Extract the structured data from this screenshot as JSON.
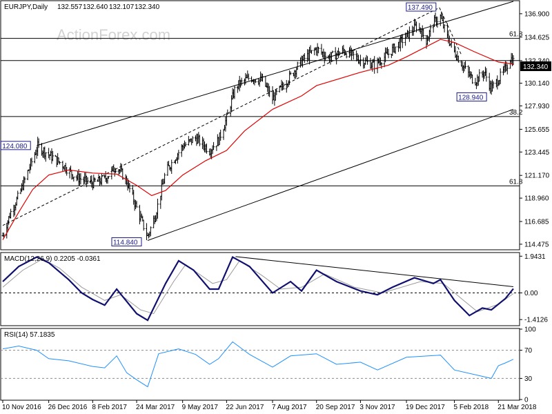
{
  "chart_data": [
    {
      "type": "candlestick",
      "title": "EURJPY,Daily",
      "ohlc_header": [
        "132.557",
        "132.640",
        "132.107",
        "132.340"
      ],
      "watermark": "ActionForex.com",
      "ylim": [
        114.0,
        138.1
      ],
      "y_ticks": [
        "136.900",
        "134.625",
        "132.340",
        "130.140",
        "127.930",
        "125.655",
        "123.445",
        "121.170",
        "118.960",
        "116.685",
        "114.475"
      ],
      "last_price": "132.340",
      "x_ticks": [
        "10 Nov 2016",
        "26 Dec 2016",
        "8 Feb 2017",
        "24 Mar 2017",
        "9 May 2017",
        "22 Jun 2017",
        "7 Aug 2017",
        "20 Sep 2017",
        "3 Nov 2017",
        "19 Dec 2017",
        "5 Feb 2018",
        "21 Mar 2018"
      ],
      "price_path": [
        {
          "x": "10 Nov 2016",
          "y": 115.3
        },
        {
          "x": "18 Nov 2016",
          "y": 117.6
        },
        {
          "x": "26 Nov 2016",
          "y": 119.2
        },
        {
          "x": "5 Dec 2016",
          "y": 121.5
        },
        {
          "x": "15 Dec 2016",
          "y": 124.0
        },
        {
          "x": "26 Dec 2016",
          "y": 123.2
        },
        {
          "x": "8 Jan 2017",
          "y": 122.3
        },
        {
          "x": "22 Jan 2017",
          "y": 121.0
        },
        {
          "x": "8 Feb 2017",
          "y": 120.4
        },
        {
          "x": "20 Feb 2017",
          "y": 120.8
        },
        {
          "x": "4 Mar 2017",
          "y": 122.1
        },
        {
          "x": "14 Mar 2017",
          "y": 120.6
        },
        {
          "x": "24 Mar 2017",
          "y": 118.0
        },
        {
          "x": "4 Apr 2017",
          "y": 115.2
        },
        {
          "x": "12 Apr 2017",
          "y": 117.4
        },
        {
          "x": "22 Apr 2017",
          "y": 121.5
        },
        {
          "x": "9 May 2017",
          "y": 124.0
        },
        {
          "x": "22 May 2017",
          "y": 124.8
        },
        {
          "x": "5 Jun 2017",
          "y": 123.6
        },
        {
          "x": "14 Jun 2017",
          "y": 124.6
        },
        {
          "x": "22 Jun 2017",
          "y": 126.7
        },
        {
          "x": "1 Jul 2017",
          "y": 129.8
        },
        {
          "x": "15 Jul 2017",
          "y": 130.7
        },
        {
          "x": "28 Jul 2017",
          "y": 130.4
        },
        {
          "x": "7 Aug 2017",
          "y": 128.6
        },
        {
          "x": "20 Aug 2017",
          "y": 130.2
        },
        {
          "x": "5 Sep 2017",
          "y": 132.3
        },
        {
          "x": "20 Sep 2017",
          "y": 133.5
        },
        {
          "x": "2 Oct 2017",
          "y": 132.6
        },
        {
          "x": "17 Oct 2017",
          "y": 133.3
        },
        {
          "x": "3 Nov 2017",
          "y": 132.4
        },
        {
          "x": "17 Nov 2017",
          "y": 131.9
        },
        {
          "x": "1 Dec 2017",
          "y": 133.0
        },
        {
          "x": "19 Dec 2017",
          "y": 134.7
        },
        {
          "x": "30 Dec 2017",
          "y": 135.8
        },
        {
          "x": "8 Jan 2018",
          "y": 134.3
        },
        {
          "x": "15 Jan 2018",
          "y": 136.0
        },
        {
          "x": "22 Jan 2018",
          "y": 136.6
        },
        {
          "x": "28 Jan 2018",
          "y": 134.8
        },
        {
          "x": "5 Feb 2018",
          "y": 133.2
        },
        {
          "x": "15 Feb 2018",
          "y": 131.6
        },
        {
          "x": "25 Feb 2018",
          "y": 130.3
        },
        {
          "x": "7 Mar 2018",
          "y": 131.2
        },
        {
          "x": "14 Mar 2018",
          "y": 129.6
        },
        {
          "x": "21 Mar 2018",
          "y": 130.5
        },
        {
          "x": "28 Mar 2018",
          "y": 131.5
        },
        {
          "x": "2 Apr 2018",
          "y": 132.6
        },
        {
          "x": "5 Apr 2018",
          "y": 132.3
        }
      ],
      "moving_average": [
        {
          "x": "10 Nov 2016",
          "y": 114.9
        },
        {
          "x": "26 Nov 2016",
          "y": 117.6
        },
        {
          "x": "10 Dec 2016",
          "y": 119.8
        },
        {
          "x": "26 Dec 2016",
          "y": 121.2
        },
        {
          "x": "15 Jan 2017",
          "y": 121.7
        },
        {
          "x": "8 Feb 2017",
          "y": 121.4
        },
        {
          "x": "4 Mar 2017",
          "y": 121.3
        },
        {
          "x": "24 Mar 2017",
          "y": 120.2
        },
        {
          "x": "8 Apr 2017",
          "y": 119.2
        },
        {
          "x": "22 Apr 2017",
          "y": 119.7
        },
        {
          "x": "9 May 2017",
          "y": 121.2
        },
        {
          "x": "1 Jun 2017",
          "y": 122.6
        },
        {
          "x": "22 Jun 2017",
          "y": 123.6
        },
        {
          "x": "10 Jul 2017",
          "y": 125.5
        },
        {
          "x": "7 Aug 2017",
          "y": 127.6
        },
        {
          "x": "5 Sep 2017",
          "y": 128.9
        },
        {
          "x": "20 Sep 2017",
          "y": 129.9
        },
        {
          "x": "3 Nov 2017",
          "y": 131.2
        },
        {
          "x": "1 Dec 2017",
          "y": 131.9
        },
        {
          "x": "19 Dec 2017",
          "y": 132.7
        },
        {
          "x": "22 Jan 2018",
          "y": 134.4
        },
        {
          "x": "5 Feb 2018",
          "y": 134.1
        },
        {
          "x": "25 Feb 2018",
          "y": 133.2
        },
        {
          "x": "21 Mar 2018",
          "y": 132.2
        },
        {
          "x": "5 Apr 2018",
          "y": 132.0
        }
      ],
      "channel_upper": [
        {
          "x": "14 Dec 2016",
          "y": 124.08
        },
        {
          "x": "5 Apr 2018",
          "y": 138.1
        }
      ],
      "channel_lower": [
        {
          "x": "4 Apr 2017",
          "y": 114.84
        },
        {
          "x": "5 Apr 2018",
          "y": 127.6
        }
      ],
      "channel_mid": [
        {
          "x": "10 Nov 2016",
          "y": 116.3
        },
        {
          "x": "21 Jan 2018",
          "y": 137.49
        }
      ],
      "swing_line": [
        {
          "x": "21 Jan 2018",
          "y": 137.49
        },
        {
          "x": "12 Feb 2018",
          "y": 132.9
        }
      ],
      "horizontal_levels": [
        {
          "y": 134.5,
          "label": "61.8"
        },
        {
          "y": 132.34,
          "label": ""
        },
        {
          "y": 126.9,
          "label": "38.2"
        },
        {
          "y": 120.15,
          "label": "61.8"
        }
      ],
      "annotations": [
        {
          "text": "137.490",
          "x": "21 Jan 2018",
          "y": 137.49
        },
        {
          "text": "124.080",
          "x": "14 Dec 2016",
          "y": 124.08
        },
        {
          "text": "128.940",
          "x": "14 Mar 2018",
          "y": 128.94
        },
        {
          "text": "114.840",
          "x": "4 Apr 2017",
          "y": 114.84
        }
      ]
    },
    {
      "type": "line",
      "title": "MACD(12,26,9) 0.2205 -0.0361",
      "ylim": [
        -1.7,
        2.1
      ],
      "y_ticks": [
        {
          "value": 1.9431,
          "label": "1.9431"
        },
        {
          "value": 0.0,
          "label": "0.00"
        },
        {
          "value": -1.4126,
          "label": "-1.4126"
        }
      ],
      "macd_line": [
        {
          "x": "10 Nov 2016",
          "y": 0.6
        },
        {
          "x": "26 Nov 2016",
          "y": 1.4
        },
        {
          "x": "14 Dec 2016",
          "y": 1.9
        },
        {
          "x": "26 Dec 2016",
          "y": 1.6
        },
        {
          "x": "15 Jan 2017",
          "y": 0.7
        },
        {
          "x": "28 Jan 2017",
          "y": 0.0
        },
        {
          "x": "8 Feb 2017",
          "y": -0.35
        },
        {
          "x": "20 Feb 2017",
          "y": -0.65
        },
        {
          "x": "4 Mar 2017",
          "y": 0.2
        },
        {
          "x": "14 Mar 2017",
          "y": -0.45
        },
        {
          "x": "24 Mar 2017",
          "y": -1.1
        },
        {
          "x": "4 Apr 2017",
          "y": -1.45
        },
        {
          "x": "22 Apr 2017",
          "y": 0.5
        },
        {
          "x": "5 May 2017",
          "y": 1.7
        },
        {
          "x": "20 May 2017",
          "y": 1.2
        },
        {
          "x": "5 Jun 2017",
          "y": 0.2
        },
        {
          "x": "14 Jun 2017",
          "y": 0.2
        },
        {
          "x": "28 Jun 2017",
          "y": 1.9
        },
        {
          "x": "15 Jul 2017",
          "y": 1.4
        },
        {
          "x": "7 Aug 2017",
          "y": 0.0
        },
        {
          "x": "25 Aug 2017",
          "y": 0.6
        },
        {
          "x": "5 Sep 2017",
          "y": 0.1
        },
        {
          "x": "20 Sep 2017",
          "y": 1.2
        },
        {
          "x": "10 Oct 2017",
          "y": 0.6
        },
        {
          "x": "3 Nov 2017",
          "y": 0.1
        },
        {
          "x": "20 Nov 2017",
          "y": -0.1
        },
        {
          "x": "5 Dec 2017",
          "y": 0.3
        },
        {
          "x": "27 Dec 2017",
          "y": 0.8
        },
        {
          "x": "15 Jan 2018",
          "y": 0.5
        },
        {
          "x": "22 Jan 2018",
          "y": 0.7
        },
        {
          "x": "5 Feb 2018",
          "y": -0.4
        },
        {
          "x": "20 Feb 2018",
          "y": -1.2
        },
        {
          "x": "5 Mar 2018",
          "y": -0.8
        },
        {
          "x": "14 Mar 2018",
          "y": -0.9
        },
        {
          "x": "28 Mar 2018",
          "y": -0.3
        },
        {
          "x": "5 Apr 2018",
          "y": 0.2205
        }
      ],
      "signal_line": [
        {
          "x": "10 Nov 2016",
          "y": 0.3
        },
        {
          "x": "30 Nov 2016",
          "y": 1.2
        },
        {
          "x": "20 Dec 2016",
          "y": 1.8
        },
        {
          "x": "6 Jan 2017",
          "y": 1.3
        },
        {
          "x": "28 Jan 2017",
          "y": 0.3
        },
        {
          "x": "20 Feb 2017",
          "y": -0.4
        },
        {
          "x": "8 Mar 2017",
          "y": -0.1
        },
        {
          "x": "28 Mar 2017",
          "y": -0.9
        },
        {
          "x": "10 Apr 2017",
          "y": -1.1
        },
        {
          "x": "30 Apr 2017",
          "y": 0.6
        },
        {
          "x": "12 May 2017",
          "y": 1.5
        },
        {
          "x": "8 Jun 2017",
          "y": 0.5
        },
        {
          "x": "22 Jun 2017",
          "y": 0.7
        },
        {
          "x": "5 Jul 2017",
          "y": 1.7
        },
        {
          "x": "28 Jul 2017",
          "y": 0.9
        },
        {
          "x": "15 Aug 2017",
          "y": 0.2
        },
        {
          "x": "5 Sep 2017",
          "y": 0.3
        },
        {
          "x": "28 Sep 2017",
          "y": 1.0
        },
        {
          "x": "28 Oct 2017",
          "y": 0.3
        },
        {
          "x": "25 Nov 2017",
          "y": 0.0
        },
        {
          "x": "2 Jan 2018",
          "y": 0.6
        },
        {
          "x": "25 Jan 2018",
          "y": 0.5
        },
        {
          "x": "12 Feb 2018",
          "y": -0.3
        },
        {
          "x": "28 Feb 2018",
          "y": -1.0
        },
        {
          "x": "21 Mar 2018",
          "y": -0.6
        },
        {
          "x": "5 Apr 2018",
          "y": -0.0361
        }
      ],
      "trendline": [
        {
          "x": "1 Jul 2017",
          "y": 1.92
        },
        {
          "x": "5 Apr 2018",
          "y": 0.33
        }
      ],
      "zero_line": 0.0
    },
    {
      "type": "line",
      "title": "RSI(14) 57.1835",
      "ylim": [
        0,
        100
      ],
      "y_ticks": [
        {
          "value": 100,
          "label": "100"
        },
        {
          "value": 70,
          "label": "70"
        },
        {
          "value": 30,
          "label": "30"
        },
        {
          "value": 0,
          "label": "0"
        }
      ],
      "levels": [
        70,
        30
      ],
      "rsi_line": [
        {
          "x": "10 Nov 2016",
          "y": 72
        },
        {
          "x": "26 Nov 2016",
          "y": 76
        },
        {
          "x": "14 Dec 2016",
          "y": 70
        },
        {
          "x": "26 Dec 2016",
          "y": 58
        },
        {
          "x": "15 Jan 2017",
          "y": 55
        },
        {
          "x": "8 Feb 2017",
          "y": 47
        },
        {
          "x": "20 Feb 2017",
          "y": 45
        },
        {
          "x": "4 Mar 2017",
          "y": 62
        },
        {
          "x": "14 Mar 2017",
          "y": 38
        },
        {
          "x": "24 Mar 2017",
          "y": 28
        },
        {
          "x": "4 Apr 2017",
          "y": 18
        },
        {
          "x": "15 Apr 2017",
          "y": 65
        },
        {
          "x": "5 May 2017",
          "y": 72
        },
        {
          "x": "22 May 2017",
          "y": 64
        },
        {
          "x": "5 Jun 2017",
          "y": 50
        },
        {
          "x": "14 Jun 2017",
          "y": 58
        },
        {
          "x": "28 Jun 2017",
          "y": 82
        },
        {
          "x": "15 Jul 2017",
          "y": 64
        },
        {
          "x": "7 Aug 2017",
          "y": 46
        },
        {
          "x": "25 Aug 2017",
          "y": 62
        },
        {
          "x": "20 Sep 2017",
          "y": 65
        },
        {
          "x": "10 Oct 2017",
          "y": 50
        },
        {
          "x": "3 Nov 2017",
          "y": 53
        },
        {
          "x": "20 Nov 2017",
          "y": 42
        },
        {
          "x": "19 Dec 2017",
          "y": 60
        },
        {
          "x": "10 Jan 2018",
          "y": 62
        },
        {
          "x": "22 Jan 2018",
          "y": 63
        },
        {
          "x": "5 Feb 2018",
          "y": 42
        },
        {
          "x": "14 Mar 2018",
          "y": 30
        },
        {
          "x": "21 Mar 2018",
          "y": 48
        },
        {
          "x": "28 Mar 2018",
          "y": 52
        },
        {
          "x": "5 Apr 2018",
          "y": 57.1835
        }
      ]
    }
  ]
}
